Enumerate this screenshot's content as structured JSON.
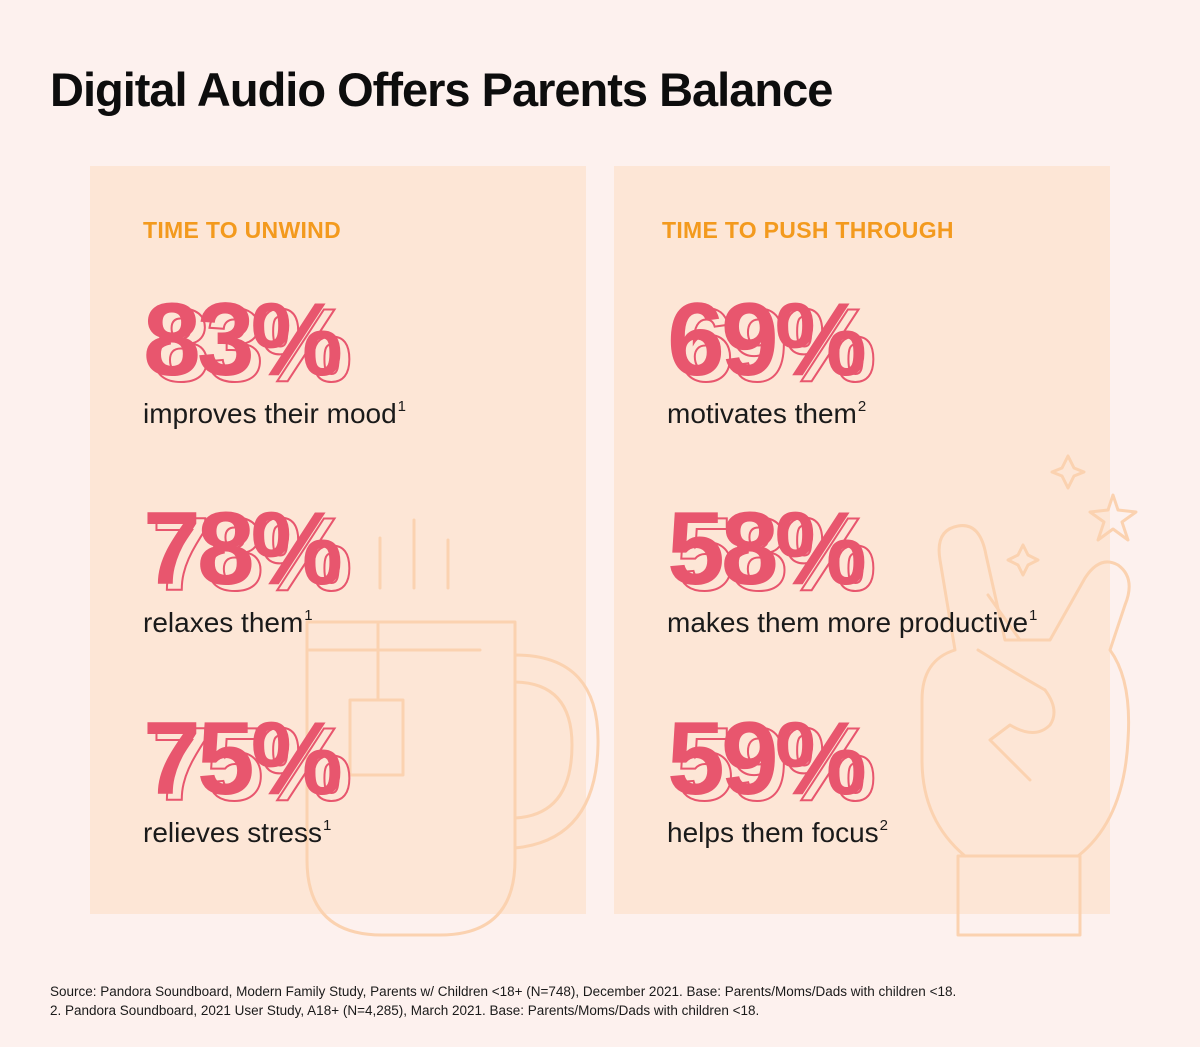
{
  "title": "Digital Audio Offers Parents Balance",
  "colors": {
    "background": "#fdf1ee",
    "panel": "#fde6d6",
    "heading": "#f39a1e",
    "stat": "#e8566e",
    "illustration": "#fbd2b0"
  },
  "icons": {
    "left_illustration": "tea-mug-icon",
    "right_illustration": "peace-hand-icon",
    "decorations": "sparkle-star-icon"
  },
  "chart_data": {
    "type": "table",
    "title": "Digital Audio Offers Parents Balance",
    "groups": [
      {
        "heading": "TIME TO UNWIND",
        "stats": [
          {
            "value": "83%",
            "label": "improves their mood",
            "footnote": "1"
          },
          {
            "value": "78%",
            "label": "relaxes them",
            "footnote": "1"
          },
          {
            "value": "75%",
            "label": "relieves stress",
            "footnote": "1"
          }
        ]
      },
      {
        "heading": "TIME TO PUSH THROUGH",
        "stats": [
          {
            "value": "69%",
            "label": "motivates them",
            "footnote": "2"
          },
          {
            "value": "58%",
            "label": "makes them more productive",
            "footnote": "1"
          },
          {
            "value": "59%",
            "label": "helps them focus",
            "footnote": "2"
          }
        ]
      }
    ]
  },
  "sources": [
    "Source: Pandora Soundboard, Modern Family Study, Parents w/ Children <18+ (N=748), December 2021. Base: Parents/Moms/Dads with children <18.",
    "2. Pandora Soundboard, 2021 User Study, A18+ (N=4,285), March 2021. Base: Parents/Moms/Dads with children <18."
  ]
}
